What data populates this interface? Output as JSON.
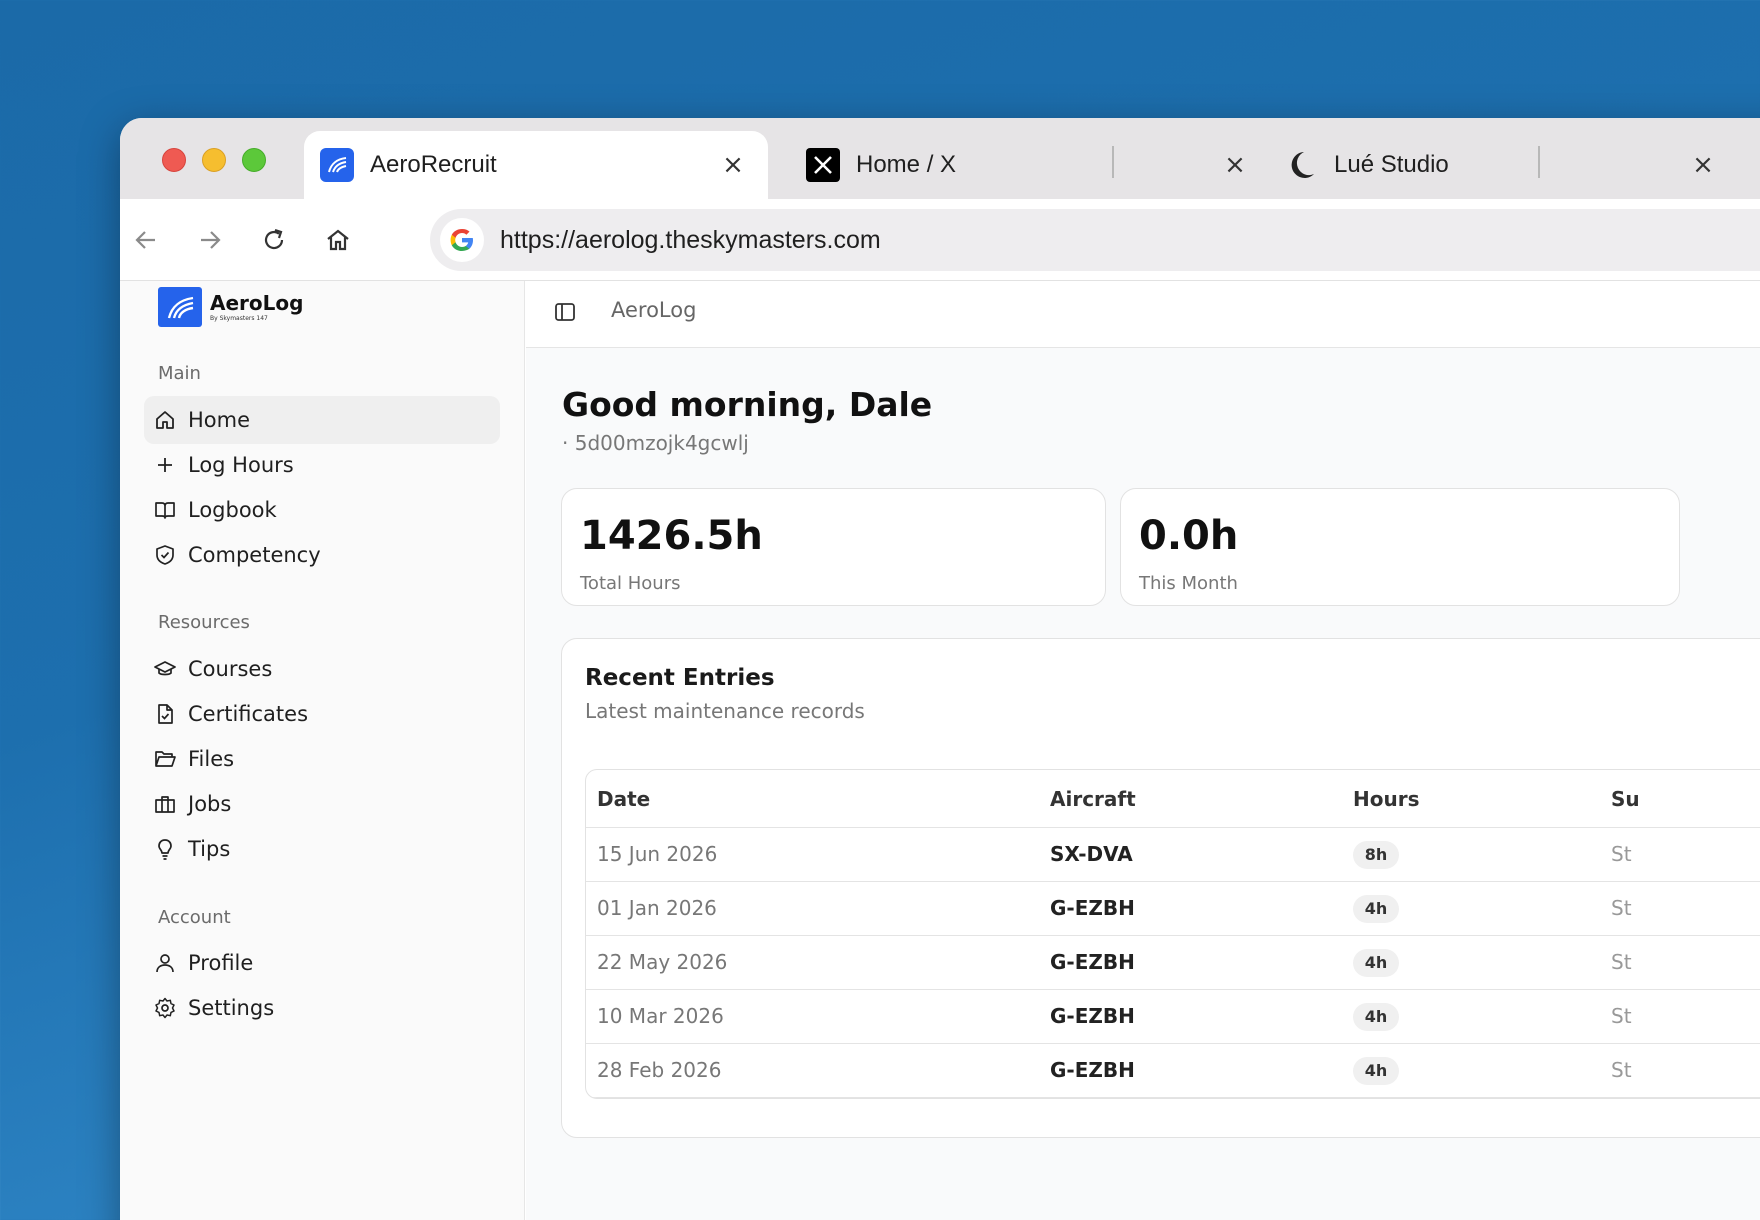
{
  "browser": {
    "tabs": [
      {
        "title": "AeroRecruit",
        "icon": "aerorecruit-logo-icon",
        "active": true
      },
      {
        "title": "Home / X",
        "icon": "x-logo-icon",
        "active": false
      },
      {
        "title": "Lué Studio",
        "icon": "moon-icon",
        "active": false
      }
    ],
    "close_glyph": "×",
    "url": "https://aerolog.theskymasters.com"
  },
  "sidebar": {
    "logo": {
      "name": "AeroLog",
      "sub": "By Skymasters 147"
    },
    "groups": [
      {
        "label": "Main",
        "items": [
          {
            "label": "Home",
            "icon": "home-icon",
            "active": true
          },
          {
            "label": "Log Hours",
            "icon": "plus-icon"
          },
          {
            "label": "Logbook",
            "icon": "book-open-icon"
          },
          {
            "label": "Competency",
            "icon": "shield-check-icon"
          }
        ]
      },
      {
        "label": "Resources",
        "items": [
          {
            "label": "Courses",
            "icon": "graduation-cap-icon"
          },
          {
            "label": "Certificates",
            "icon": "file-check-icon"
          },
          {
            "label": "Files",
            "icon": "folder-open-icon"
          },
          {
            "label": "Jobs",
            "icon": "briefcase-icon"
          },
          {
            "label": "Tips",
            "icon": "lightbulb-icon"
          }
        ]
      },
      {
        "label": "Account",
        "items": [
          {
            "label": "Profile",
            "icon": "user-icon"
          },
          {
            "label": "Settings",
            "icon": "gear-icon"
          }
        ]
      }
    ]
  },
  "main": {
    "breadcrumb": "AeroLog",
    "greeting": "Good morning, Dale",
    "user_id": "· 5d00mzojk4gcwlj",
    "stats": [
      {
        "value": "1426.5h",
        "label": "Total Hours"
      },
      {
        "value": "0.0h",
        "label": "This Month"
      }
    ],
    "recent": {
      "title": "Recent Entries",
      "subtitle": "Latest maintenance records",
      "columns": [
        "Date",
        "Aircraft",
        "Hours",
        "Su"
      ],
      "rows": [
        {
          "date": "15 Jun 2026",
          "aircraft": "SX-DVA",
          "hours": "8h",
          "status": "St"
        },
        {
          "date": "01 Jan 2026",
          "aircraft": "G-EZBH",
          "hours": "4h",
          "status": "St"
        },
        {
          "date": "22 May 2026",
          "aircraft": "G-EZBH",
          "hours": "4h",
          "status": "St"
        },
        {
          "date": "10 Mar 2026",
          "aircraft": "G-EZBH",
          "hours": "4h",
          "status": "St"
        },
        {
          "date": "28 Feb 2026",
          "aircraft": "G-EZBH",
          "hours": "4h",
          "status": "St"
        }
      ]
    }
  },
  "colors": {
    "brand": "#2563eb",
    "desktop": "#1d6fae"
  }
}
